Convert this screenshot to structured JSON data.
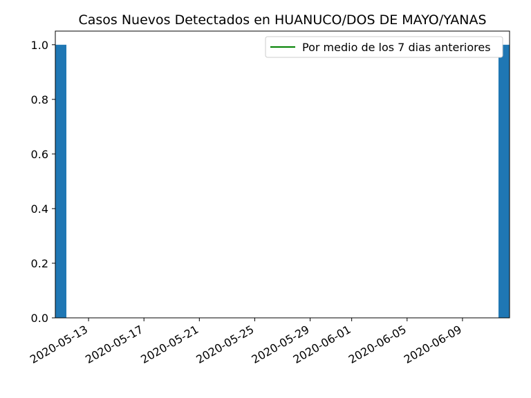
{
  "chart_data": {
    "type": "bar",
    "title": "Casos Nuevos Detectados en HUANUCO/DOS DE MAYO/YANAS",
    "xlabel": "",
    "ylabel": "",
    "x_range": [
      "2020-05-11",
      "2020-06-12"
    ],
    "ylim": [
      0,
      1.05
    ],
    "y_ticks": [
      0.0,
      0.2,
      0.4,
      0.6,
      0.8,
      1.0
    ],
    "y_tick_labels": [
      "0.0",
      "0.2",
      "0.4",
      "0.6",
      "0.8",
      "1.0"
    ],
    "x_ticks": [
      "2020-05-13",
      "2020-05-17",
      "2020-05-21",
      "2020-05-25",
      "2020-05-29",
      "2020-06-01",
      "2020-06-05",
      "2020-06-09"
    ],
    "bars": [
      {
        "date": "2020-05-11",
        "value": 1
      },
      {
        "date": "2020-06-12",
        "value": 1
      }
    ],
    "bar_color": "#1f77b4",
    "series": [
      {
        "name": "Por medio de los 7 dias anteriores",
        "color": "#008000",
        "values": []
      }
    ],
    "legend_position": "top-right",
    "grid": false
  }
}
